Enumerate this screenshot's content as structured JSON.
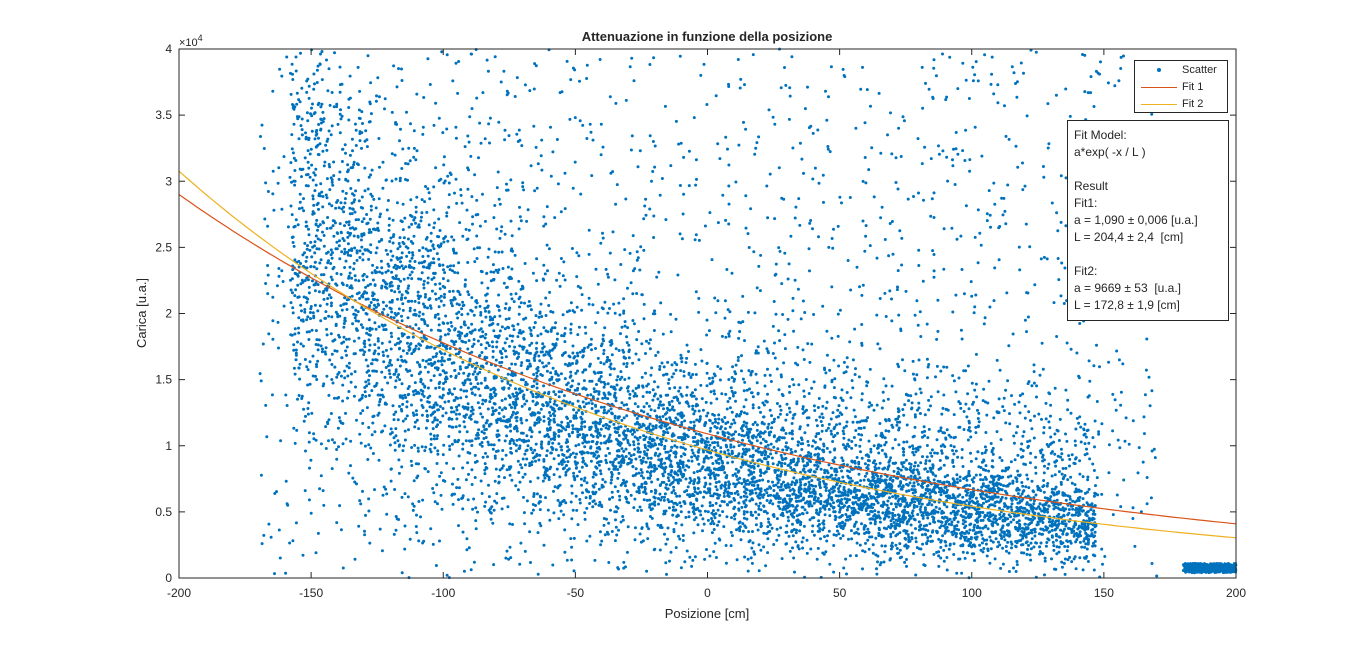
{
  "chart_data": {
    "type": "scatter",
    "title": "Attenuazione in funzione della posizione",
    "xlabel": "Posizione [cm]",
    "ylabel": "Carica [u.a.]",
    "xlim": [
      -200,
      200
    ],
    "ylim": [
      0,
      40000
    ],
    "xticks": [
      "-200",
      "-150",
      "-100",
      "-50",
      "0",
      "50",
      "100",
      "150",
      "200"
    ],
    "yticks": [
      "0",
      "0.5",
      "1",
      "1.5",
      "2",
      "2.5",
      "3",
      "3.5",
      "4"
    ],
    "y_exponent_label": "×10",
    "y_exponent_power": "4",
    "grid": false,
    "legend_position": "top-right",
    "series": [
      {
        "name": "Scatter",
        "kind": "scatter",
        "color": "#0072BD",
        "description_points": [
          [
            -150,
            25000
          ],
          [
            -125,
            20000
          ],
          [
            -100,
            16000
          ],
          [
            -75,
            13000
          ],
          [
            -50,
            11000
          ],
          [
            -25,
            9500
          ],
          [
            0,
            8500
          ],
          [
            25,
            7000
          ],
          [
            50,
            6000
          ],
          [
            75,
            5500
          ],
          [
            100,
            5000
          ],
          [
            125,
            4500
          ],
          [
            145,
            4000
          ],
          [
            190,
            700
          ],
          [
            200,
            700
          ]
        ]
      },
      {
        "name": "Fit 1",
        "kind": "line",
        "color": "#D95319",
        "model": "a*exp(-x/L)",
        "a": 10900,
        "L": 204.4,
        "x": [
          -200,
          -150,
          -100,
          -50,
          0,
          50,
          100,
          150,
          200
        ],
        "y": [
          28960,
          22760,
          17640,
          13930,
          10900,
          8540,
          6680,
          5220,
          4100
        ]
      },
      {
        "name": "Fit 2",
        "kind": "line",
        "color": "#EDB120",
        "model": "a*exp(-x/L)",
        "a": 9669,
        "L": 172.8,
        "x": [
          -200,
          -150,
          -100,
          -50,
          0,
          50,
          100,
          150,
          200
        ],
        "y": [
          30770,
          23120,
          17300,
          12890,
          9669,
          7240,
          5420,
          4060,
          3040
        ]
      }
    ]
  },
  "annotation": {
    "lines": [
      "Fit Model:",
      "a*exp( -x / L )",
      "",
      "Result",
      "Fit1:",
      "a = 1,090 ± 0,006 [u.a.]",
      "L = 204,4 ± 2,4  [cm]",
      "",
      "Fit2:",
      "a = 9669 ± 53  [u.a.]",
      "L = 172,8 ± 1,9 [cm]"
    ]
  }
}
